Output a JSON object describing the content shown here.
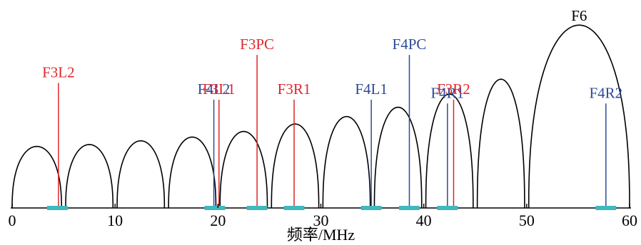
{
  "chart_data": {
    "type": "line",
    "title": "",
    "xlabel": "频率/MHz",
    "ylabel": "",
    "xlim": [
      0,
      60
    ],
    "x_ticks": [
      "0",
      "10",
      "20",
      "30",
      "40",
      "50",
      "60"
    ],
    "grid": false,
    "lobes": [
      {
        "start": 0,
        "end": 4.8,
        "peak": 0.33
      },
      {
        "start": 5.2,
        "end": 9.8,
        "peak": 0.34
      },
      {
        "start": 10.2,
        "end": 14.8,
        "peak": 0.36
      },
      {
        "start": 15.2,
        "end": 19.8,
        "peak": 0.38
      },
      {
        "start": 20.2,
        "end": 24.8,
        "peak": 0.41
      },
      {
        "start": 25.2,
        "end": 29.8,
        "peak": 0.45
      },
      {
        "start": 30.2,
        "end": 34.8,
        "peak": 0.49
      },
      {
        "start": 35.2,
        "end": 39.8,
        "peak": 0.54
      },
      {
        "start": 40.2,
        "end": 44.8,
        "peak": 0.61
      },
      {
        "start": 45.2,
        "end": 49.8,
        "peak": 0.69
      },
      {
        "start": 50.2,
        "end": 60,
        "peak": 0.98,
        "label": "F6",
        "color": "#000000"
      }
    ],
    "markers": [
      {
        "label": "F3L2",
        "x": 4.5,
        "top": 0.67,
        "color": "#e0262b"
      },
      {
        "label": "F4L2",
        "x": 19.6,
        "top": 0.58,
        "color": "#2e4a9a"
      },
      {
        "label": "F3L1",
        "x": 20.1,
        "top": 0.58,
        "color": "#e0262b"
      },
      {
        "label": "F3PC",
        "x": 23.8,
        "top": 0.82,
        "color": "#e0262b"
      },
      {
        "label": "F3R1",
        "x": 27.4,
        "top": 0.58,
        "color": "#e0262b"
      },
      {
        "label": "F4L1",
        "x": 34.9,
        "top": 0.58,
        "color": "#2e4a9a"
      },
      {
        "label": "F4PC",
        "x": 38.6,
        "top": 0.82,
        "color": "#2e4a9a"
      },
      {
        "label": "F4R1",
        "x": 42.3,
        "top": 0.56,
        "color": "#2e4a9a"
      },
      {
        "label": "F3R2",
        "x": 42.9,
        "top": 0.58,
        "color": "#e0262b"
      },
      {
        "label": "F4R2",
        "x": 57.7,
        "top": 0.56,
        "color": "#2e4a9a"
      }
    ],
    "bands": [
      {
        "start": 3.4,
        "end": 5.4
      },
      {
        "start": 18.7,
        "end": 20.7
      },
      {
        "start": 22.8,
        "end": 24.8
      },
      {
        "start": 26.4,
        "end": 28.4
      },
      {
        "start": 33.9,
        "end": 35.9
      },
      {
        "start": 37.6,
        "end": 39.6
      },
      {
        "start": 41.3,
        "end": 43.3
      },
      {
        "start": 56.7,
        "end": 58.7
      }
    ],
    "colors": {
      "curve": "#000000",
      "band": "#3fb8bf",
      "axis": "#000000"
    }
  }
}
